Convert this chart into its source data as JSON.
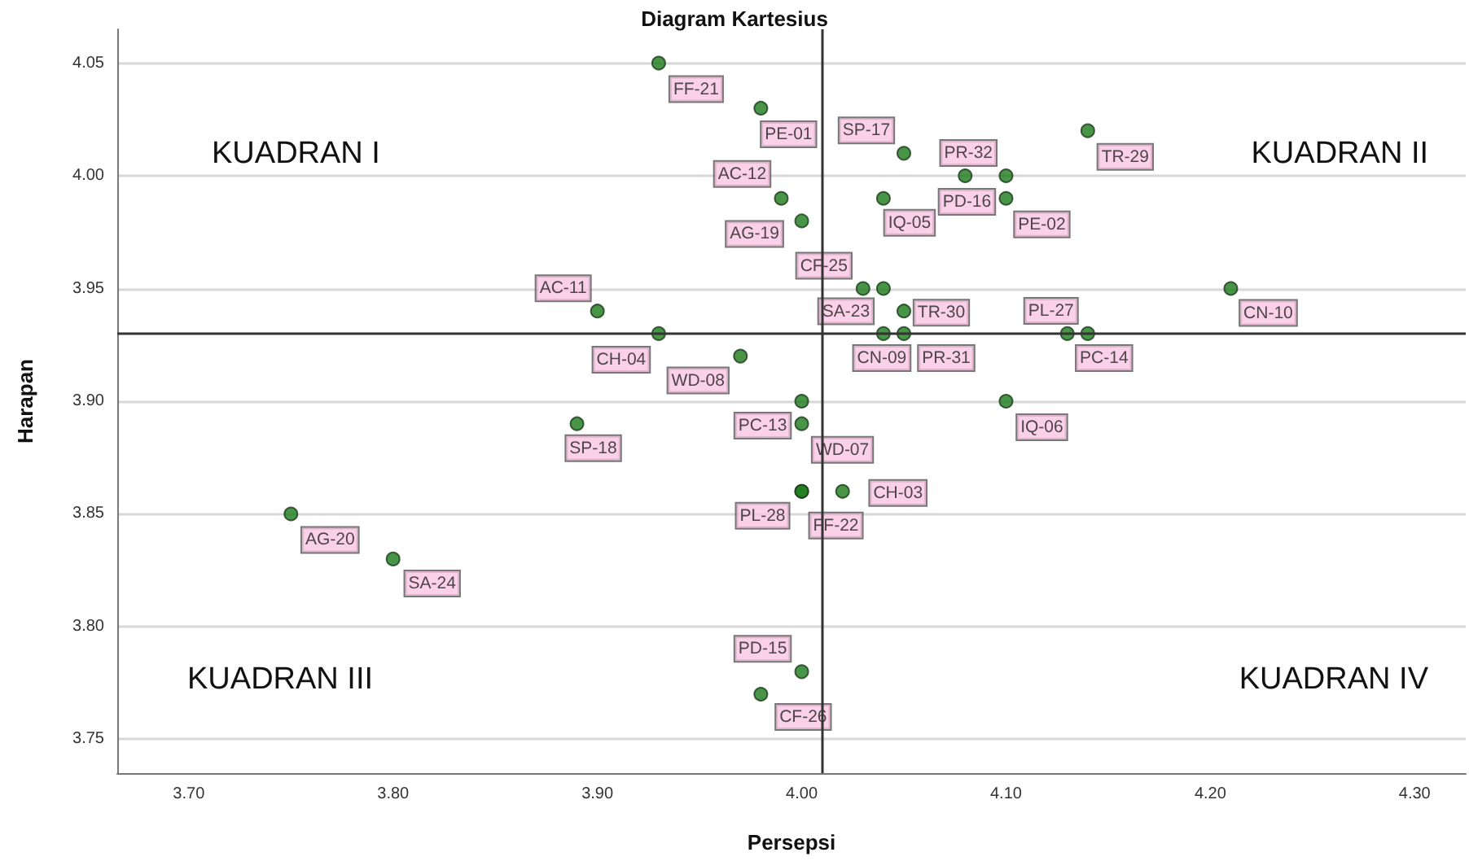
{
  "chart_data": {
    "type": "scatter",
    "title": "Diagram Kartesius",
    "xlabel": "Persepsi",
    "ylabel": "Harapan",
    "annotations": [
      "KUADRAN I",
      "KUADRAN II",
      "KUADRAN III",
      "KUADRAN IV"
    ],
    "x": [
      3.93,
      3.98,
      3.99,
      4.0,
      4.03,
      4.04,
      4.05,
      4.04,
      4.08,
      4.1,
      4.1,
      4.14,
      4.05,
      4.04,
      4.05,
      4.13,
      4.14,
      4.21,
      3.9,
      3.93,
      3.97,
      4.1,
      4.0,
      4.0,
      3.89,
      4.0,
      4.0,
      4.02,
      3.75,
      3.8,
      4.0,
      3.98
    ],
    "values": [
      4.05,
      4.03,
      3.99,
      3.98,
      3.95,
      3.95,
      4.01,
      3.99,
      4.0,
      4.0,
      3.99,
      4.02,
      3.94,
      3.93,
      3.93,
      3.93,
      3.93,
      3.95,
      3.94,
      3.93,
      3.92,
      3.9,
      3.9,
      3.89,
      3.89,
      3.86,
      3.86,
      3.86,
      3.85,
      3.83,
      3.78,
      3.77
    ],
    "value_labels": [
      "FF-21",
      "PE-01",
      "AC-12",
      "AG-19",
      "CF-25",
      "SA-23",
      "SP-17",
      "IQ-05",
      "PR-32",
      "PD-16",
      "PE-02",
      "TR-29",
      "TR-30",
      "CN-09",
      "PR-31",
      "PL-27",
      "PC-14",
      "CN-10",
      "AC-11",
      "CH-04",
      "WD-08",
      "IQ-06",
      "PC-13",
      "WD-07",
      "SP-18",
      "PL-28",
      "FF-22",
      "CH-03",
      "AG-20",
      "SA-24",
      "PD-15",
      "CF-26"
    ],
    "color": "#1a7a1a",
    "marker": "circle",
    "xlim": [
      3.665,
      4.325
    ],
    "xticks": [
      {
        "value": 3.7,
        "label": "3.70"
      },
      {
        "value": 3.8,
        "label": "3.80"
      },
      {
        "value": 3.9,
        "label": "3.90"
      },
      {
        "value": 4.0,
        "label": "4.00"
      },
      {
        "value": 4.1,
        "label": "4.10"
      },
      {
        "value": 4.2,
        "label": "4.20"
      },
      {
        "value": 4.3,
        "label": "4.30"
      }
    ],
    "ylim": [
      3.735,
      4.065
    ],
    "yticks": [
      {
        "value": 3.75,
        "label": "3.75"
      },
      {
        "value": 3.8,
        "label": "3.80"
      },
      {
        "value": 3.85,
        "label": "3.85"
      },
      {
        "value": 3.9,
        "label": "3.90"
      },
      {
        "value": 3.95,
        "label": "3.95"
      },
      {
        "value": 4.0,
        "label": "4.00"
      },
      {
        "value": 4.05,
        "label": "4.05"
      }
    ],
    "grid": "y",
    "ref_lines": [
      {
        "axis": "x",
        "value": 4.01,
        "color": "#333333"
      },
      {
        "axis": "y",
        "value": 3.93,
        "color": "#333333"
      }
    ]
  }
}
